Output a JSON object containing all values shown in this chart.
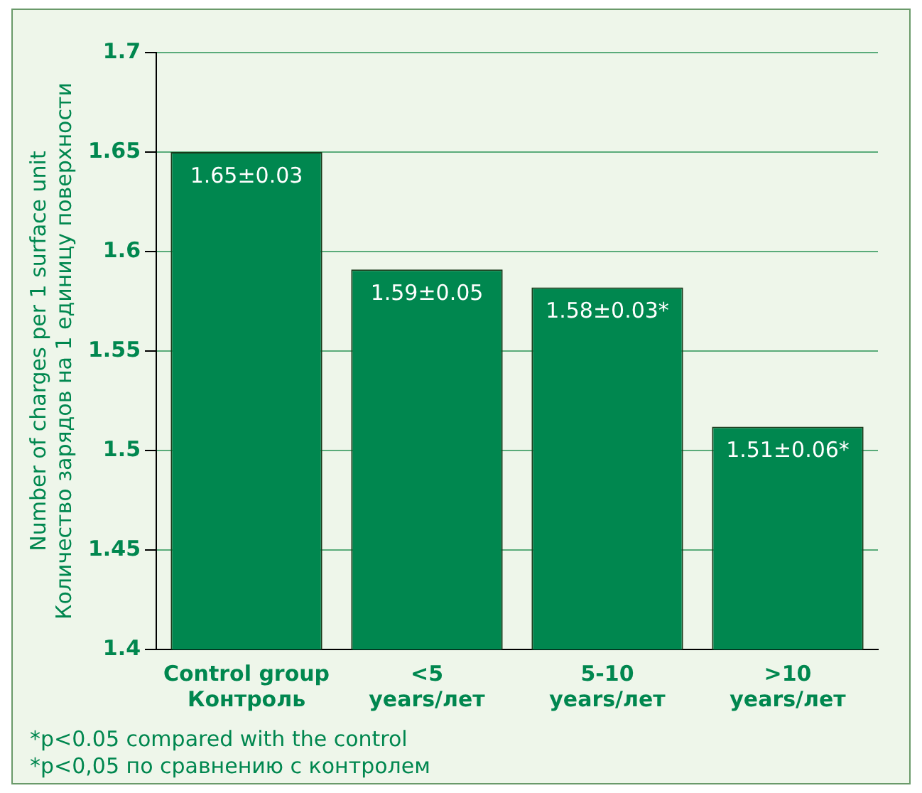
{
  "chart_data": {
    "type": "bar",
    "ylabel": "Number of charges per 1 surface unit\nКоличество зарядов на 1 единицу поверхности",
    "categories": [
      "Control group\nКонтроль",
      "<5\nyears/лет",
      "5-10\nyears/лет",
      ">10\nyears/лет"
    ],
    "values": [
      1.65,
      1.591,
      1.582,
      1.512
    ],
    "value_labels": [
      "1.65±0.03",
      "1.59±0.05",
      "1.58±0.03*",
      "1.51±0.06*"
    ],
    "color": "#00874f",
    "ylim": [
      1.4,
      1.7
    ],
    "yticks": [
      1.4,
      1.45,
      1.5,
      1.55,
      1.6,
      1.65,
      1.7
    ],
    "grid": "y",
    "annotations": [
      "*p<0.05 compared with the control",
      "*p<0,05 по сравнению с контролем"
    ]
  }
}
